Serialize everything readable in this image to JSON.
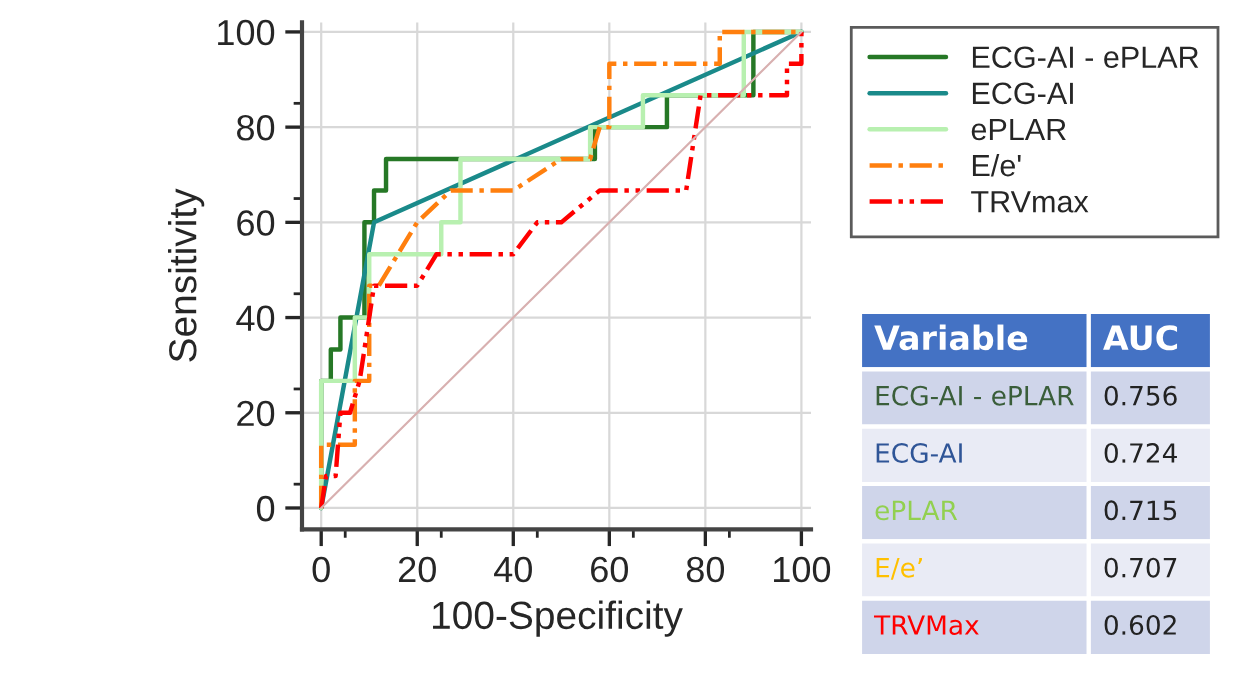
{
  "chart_data": [
    {
      "type": "line",
      "xlabel": "100-Specificity",
      "ylabel": "Sensitivity",
      "xlim": [
        -4,
        102
      ],
      "ylim": [
        -4.5,
        102
      ],
      "xticks": [
        0,
        20,
        40,
        60,
        80,
        100
      ],
      "yticks": [
        0,
        20,
        40,
        60,
        80,
        100
      ],
      "grid": true,
      "legend": "right",
      "series": [
        {
          "name": "ECG-AI - ePLAR",
          "color": "#267826",
          "line_style": "solid",
          "x": [
            0,
            0,
            2,
            2,
            4,
            4,
            9,
            9,
            11,
            11,
            13.5,
            13.5,
            30,
            57,
            57,
            72,
            72,
            90,
            90,
            100
          ],
          "values": [
            0,
            26.7,
            26.7,
            33.3,
            33.3,
            40,
            40,
            60,
            60,
            66.7,
            66.7,
            73.3,
            73.3,
            73.3,
            80,
            80,
            86.7,
            86.7,
            100,
            100
          ]
        },
        {
          "name": "ECG-AI",
          "color": "#1a8a8a",
          "line_style": "solid",
          "x": [
            0,
            11,
            100
          ],
          "values": [
            0,
            60,
            100
          ]
        },
        {
          "name": "ePLAR",
          "color": "#b8f0b0",
          "line_style": "solid",
          "x": [
            0,
            0,
            7,
            7,
            10,
            10,
            25,
            25,
            29,
            29,
            56,
            56,
            67,
            67,
            88,
            88,
            100
          ],
          "values": [
            0,
            26.7,
            26.7,
            40,
            40,
            53.3,
            53.3,
            60,
            60,
            73.3,
            73.3,
            80,
            80,
            86.7,
            86.7,
            100,
            100
          ]
        },
        {
          "name": "E/e'",
          "color": "#ff7f0e",
          "line_style": "dashdot",
          "x": [
            0,
            0,
            7,
            7,
            10,
            10,
            12,
            20,
            27,
            40,
            50,
            56,
            58,
            60,
            60,
            83,
            83,
            100
          ],
          "values": [
            0,
            13.3,
            13.3,
            26.7,
            26.7,
            46.7,
            46.7,
            60,
            66.7,
            66.7,
            73.3,
            73.3,
            80,
            80,
            93.3,
            93.3,
            100,
            100
          ]
        },
        {
          "name": "TRVmax",
          "color": "#ff0000",
          "line_style": "dashdotdot",
          "x": [
            0,
            1,
            3,
            4,
            6,
            8,
            9,
            10,
            11,
            20,
            24,
            40,
            45,
            50,
            58,
            76,
            79,
            97,
            97,
            100,
            100
          ],
          "values": [
            0,
            6.7,
            6.7,
            20,
            20,
            26.7,
            33.3,
            40,
            46.7,
            46.7,
            53.3,
            53.3,
            60,
            60,
            66.7,
            66.7,
            86.7,
            86.7,
            93.3,
            93.3,
            100
          ]
        },
        {
          "color": "#d8b0b0",
          "line_style": "solid",
          "x": [
            0,
            100
          ],
          "values": [
            0,
            100
          ]
        }
      ]
    },
    {
      "type": "other",
      "annotations": [
        "Variable",
        "AUC",
        "ECG-AI - ePLAR",
        "0.756",
        "ECG-AI",
        "0.724",
        "ePLAR",
        "0.715",
        "E/e’",
        "0.707",
        "TRVMax",
        "0.602"
      ]
    }
  ]
}
